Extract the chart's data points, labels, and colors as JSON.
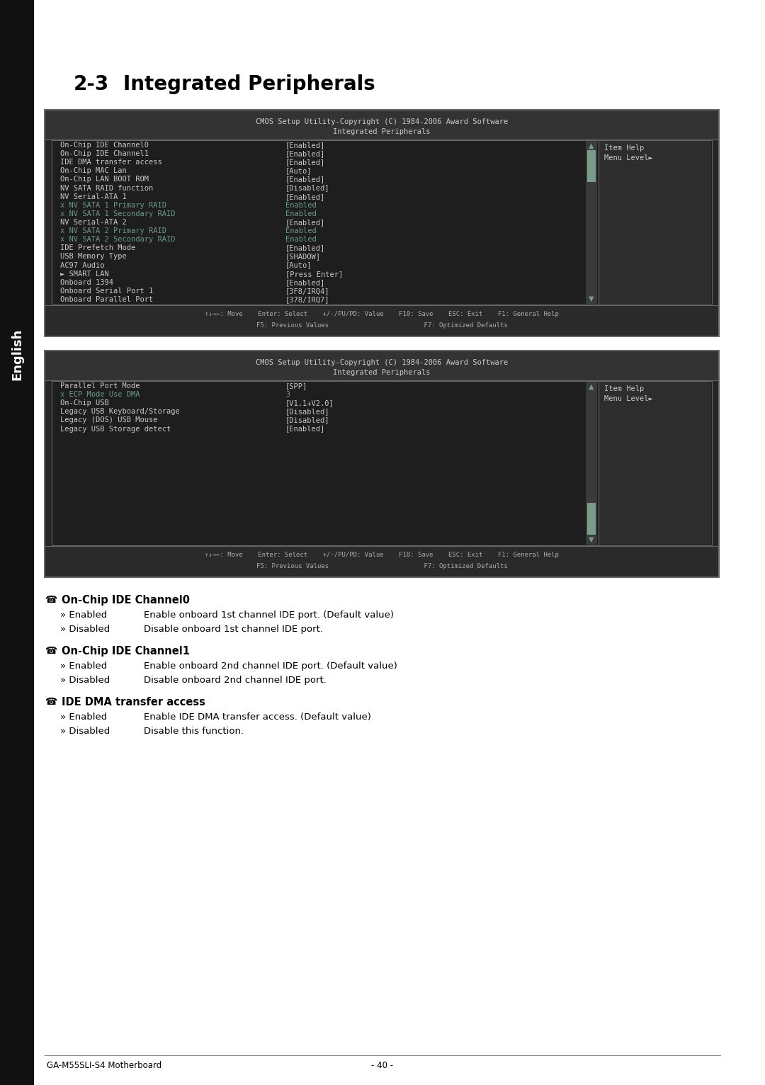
{
  "title_num": "2-3",
  "title_text": "Integrated Peripherals",
  "sidebar_text": "English",
  "bios_header": "CMOS Setup Utility-Copyright (C) 1984-2006 Award Software",
  "bios_subtitle": "Integrated Peripherals",
  "screen1_rows": [
    {
      "label": "On-Chip IDE Channel0",
      "value": "[Enabled]",
      "dimmed": false,
      "prefix": ""
    },
    {
      "label": "On-Chip IDE Channel1",
      "value": "[Enabled]",
      "dimmed": false,
      "prefix": ""
    },
    {
      "label": "IDE DMA transfer access",
      "value": "[Enabled]",
      "dimmed": false,
      "prefix": ""
    },
    {
      "label": "On-Chip MAC Lan",
      "value": "[Auto]",
      "dimmed": false,
      "prefix": ""
    },
    {
      "label": "On-Chip LAN BOOT ROM",
      "value": "[Enabled]",
      "dimmed": false,
      "prefix": ""
    },
    {
      "label": "NV SATA RAID function",
      "value": "[Disabled]",
      "dimmed": false,
      "prefix": ""
    },
    {
      "label": "NV Serial-ATA 1",
      "value": "[Enabled]",
      "dimmed": false,
      "prefix": ""
    },
    {
      "label": "NV SATA 1 Primary RAID",
      "value": "Enabled",
      "dimmed": true,
      "prefix": "x "
    },
    {
      "label": "NV SATA 1 Secondary RAID",
      "value": "Enabled",
      "dimmed": true,
      "prefix": "x "
    },
    {
      "label": "NV Serial-ATA 2",
      "value": "[Enabled]",
      "dimmed": false,
      "prefix": ""
    },
    {
      "label": "NV SATA 2 Primary RAID",
      "value": "Enabled",
      "dimmed": true,
      "prefix": "x "
    },
    {
      "label": "NV SATA 2 Secondary RAID",
      "value": "Enabled",
      "dimmed": true,
      "prefix": "x "
    },
    {
      "label": "IDE Prefetch Mode",
      "value": "[Enabled]",
      "dimmed": false,
      "prefix": ""
    },
    {
      "label": "USB Memory Type",
      "value": "[SHADOW]",
      "dimmed": false,
      "prefix": ""
    },
    {
      "label": "AC97 Audio",
      "value": "[Auto]",
      "dimmed": false,
      "prefix": ""
    },
    {
      "label": "SMART LAN",
      "value": "[Press Enter]",
      "dimmed": false,
      "prefix": "► "
    },
    {
      "label": "Onboard 1394",
      "value": "[Enabled]",
      "dimmed": false,
      "prefix": ""
    },
    {
      "label": "Onboard Serial Port 1",
      "value": "[3F8/IRQ4]",
      "dimmed": false,
      "prefix": ""
    },
    {
      "label": "Onboard Parallel Port",
      "value": "[378/IRQ7]",
      "dimmed": false,
      "prefix": ""
    }
  ],
  "screen2_rows": [
    {
      "label": "Parallel Port Mode",
      "value": "[SPP]",
      "dimmed": false,
      "prefix": ""
    },
    {
      "label": "ECP Mode Use DMA",
      "value": "3",
      "dimmed": true,
      "prefix": "x "
    },
    {
      "label": "On-Chip USB",
      "value": "[V1.1+V2.0]",
      "dimmed": false,
      "prefix": ""
    },
    {
      "label": "Legacy USB Keyboard/Storage",
      "value": "[Disabled]",
      "dimmed": false,
      "prefix": ""
    },
    {
      "label": "Legacy (DOS) USB Mouse",
      "value": "[Disabled]",
      "dimmed": false,
      "prefix": ""
    },
    {
      "label": "Legacy USB Storage detect",
      "value": "[Enabled]",
      "dimmed": false,
      "prefix": ""
    }
  ],
  "footer_line1": "↑↓→←: Move    Enter: Select    +/-/PU/PD: Value    F10: Save    ESC: Exit    F1: General Help",
  "footer_line2": "F5: Previous Values                         F7: Optimized Defaults",
  "help_title": "Item Help",
  "help_text": "Menu Level►",
  "section_entries": [
    {
      "heading": "On-Chip IDE Channel0",
      "items": [
        {
          "bullet": "» Enabled",
          "desc": "Enable onboard 1st channel IDE port. (Default value)"
        },
        {
          "bullet": "» Disabled",
          "desc": "Disable onboard 1st channel IDE port."
        }
      ]
    },
    {
      "heading": "On-Chip IDE Channel1",
      "items": [
        {
          "bullet": "» Enabled",
          "desc": "Enable onboard 2nd channel IDE port. (Default value)"
        },
        {
          "bullet": "» Disabled",
          "desc": "Disable onboard 2nd channel IDE port."
        }
      ]
    },
    {
      "heading": "IDE DMA transfer access",
      "items": [
        {
          "bullet": "» Enabled",
          "desc": "Enable IDE DMA transfer access. (Default value)"
        },
        {
          "bullet": "» Disabled",
          "desc": "Disable this function."
        }
      ]
    }
  ],
  "footer_note": "GA-M55SLI-S4 Motherboard",
  "footer_page": "- 40 -",
  "bg_color": "#ffffff",
  "bios_bg": "#252525",
  "bios_header_bg": "#333333",
  "bios_text": "#c8c8c8",
  "bios_dimmed": "#6a9888",
  "bios_border": "#666666",
  "scrollbar_bg": "#3a3a3a",
  "scrollbar_thumb": "#7a9a8a",
  "help_bg": "#2d2d2d",
  "sidebar_bg": "#111111",
  "sidebar_text_color": "#ffffff",
  "content_bg": "#1e1e1e"
}
